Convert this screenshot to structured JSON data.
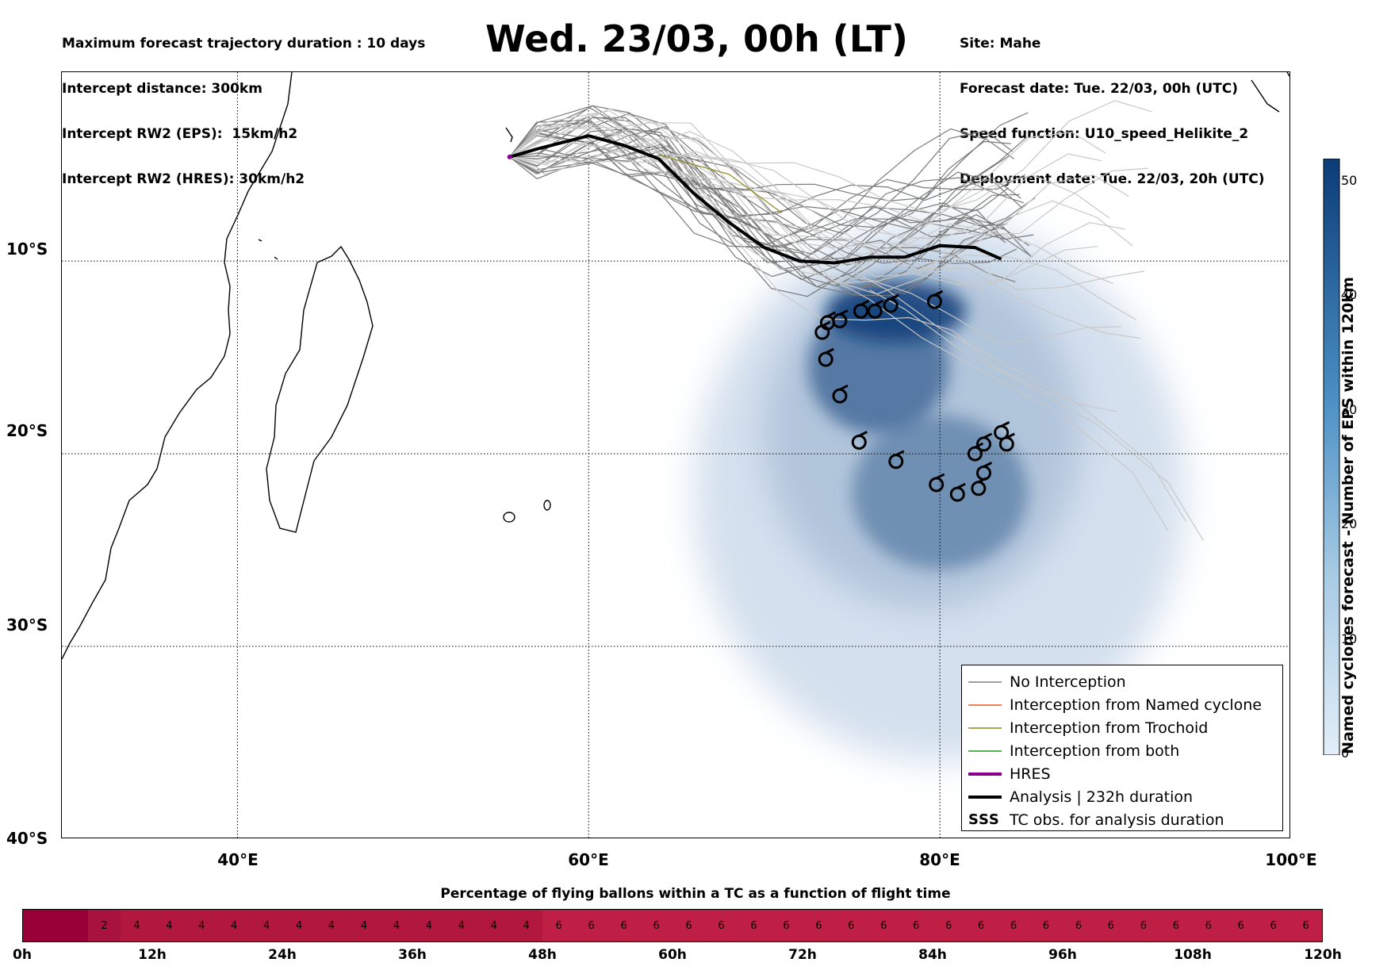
{
  "header": {
    "left_lines": [
      "Maximum forecast trajectory duration : 10 days",
      "Intercept distance: 300km",
      "Intercept RW2 (EPS):  15km/h2",
      "Intercept RW2 (HRES): 30km/h2"
    ],
    "title": "Wed. 23/03, 00h (LT)",
    "right_lines": [
      "Site: Mahe",
      "Forecast date: Tue. 22/03, 00h (UTC)",
      "Speed function: U10_speed_Helikite_2",
      "Deployment date: Tue. 22/03, 20h (UTC)"
    ]
  },
  "map": {
    "lat_labels": [
      "10°S",
      "20°S",
      "30°S",
      "40°S"
    ],
    "lon_labels": [
      "40°E",
      "60°E",
      "80°E",
      "100°E"
    ],
    "lon_range": [
      30,
      100
    ],
    "lat_range": [
      -40,
      -0.2
    ],
    "site": {
      "name": "Mahe",
      "lon": 55.5,
      "lat": -4.6
    },
    "analysis_track": [
      [
        55.5,
        -4.6
      ],
      [
        57,
        -4.2
      ],
      [
        60,
        -3.5
      ],
      [
        62,
        -4
      ],
      [
        64,
        -4.7
      ],
      [
        66,
        -6.5
      ],
      [
        68,
        -8
      ],
      [
        70,
        -9.3
      ],
      [
        72,
        -10
      ],
      [
        74,
        -10.1
      ],
      [
        76,
        -9.8
      ],
      [
        78,
        -9.8
      ],
      [
        80,
        -9.2
      ],
      [
        82,
        -9.3
      ],
      [
        83.5,
        -9.9
      ]
    ],
    "tc_obs": [
      [
        73.3,
        -13.7
      ],
      [
        73.6,
        -13.2
      ],
      [
        74.3,
        -13.1
      ],
      [
        75.5,
        -12.6
      ],
      [
        76.3,
        -12.6
      ],
      [
        77.2,
        -12.3
      ],
      [
        79.7,
        -12.1
      ],
      [
        73.5,
        -15.1
      ],
      [
        74.3,
        -17.0
      ],
      [
        75.4,
        -19.4
      ],
      [
        77.5,
        -20.4
      ],
      [
        79.8,
        -21.6
      ],
      [
        81,
        -22.1
      ],
      [
        82.2,
        -21.8
      ],
      [
        82.5,
        -21
      ],
      [
        82.5,
        -19.5
      ],
      [
        82,
        -20
      ],
      [
        83.5,
        -18.9
      ],
      [
        83.8,
        -19.5
      ]
    ],
    "density_blobs": [
      {
        "lon": 77.5,
        "lat": -12.6,
        "rx": 4,
        "ry": 1.6,
        "level": 52
      },
      {
        "lon": 76.5,
        "lat": -15.5,
        "rx": 4,
        "ry": 3.5,
        "level": 38
      },
      {
        "lon": 80,
        "lat": -22,
        "rx": 5,
        "ry": 4,
        "level": 30
      },
      {
        "lon": 79,
        "lat": -19,
        "rx": 9,
        "ry": 9,
        "level": 12
      },
      {
        "lon": 80,
        "lat": -22,
        "rx": 14,
        "ry": 14,
        "level": 4
      }
    ],
    "land_color": "#ffffff",
    "coast_color": "#000000"
  },
  "colorbar": {
    "label": "Named cyclones forecast - Number of EPS within 120km",
    "ticks": [
      "50",
      "40",
      "30",
      "20",
      "10",
      "0"
    ],
    "max": 52,
    "color_low": "#dfeaf6",
    "color_high": "#0b3c78"
  },
  "legend": {
    "items": [
      {
        "label": "No Interception",
        "color": "#808080"
      },
      {
        "label": "Interception from Named cyclone",
        "color": "#e8581e"
      },
      {
        "label": "Interception from Trochoid",
        "color": "#8b8b18"
      },
      {
        "label": "Interception from both",
        "color": "#1e9a1e"
      },
      {
        "label": "HRES",
        "color": "#8b008b"
      },
      {
        "label": "Analysis | 232h duration",
        "color": "#000000"
      },
      {
        "label": "TC obs. for analysis duration",
        "color": "#000000"
      }
    ]
  },
  "timeline": {
    "title": "Percentage of flying ballons within a TC as a function of flight time",
    "cells": [
      "",
      "",
      "2",
      "4",
      "4",
      "4",
      "4",
      "4",
      "4",
      "4",
      "4",
      "4",
      "4",
      "4",
      "4",
      "4",
      "6",
      "6",
      "6",
      "6",
      "6",
      "6",
      "6",
      "6",
      "6",
      "6",
      "6",
      "6",
      "6",
      "6",
      "6",
      "6",
      "6",
      "6",
      "6",
      "6",
      "6",
      "6",
      "6",
      "6"
    ],
    "cell_colors": [
      "#9a0038",
      "#9a0038",
      "#a8123f",
      "#b2183f",
      "#c01f45"
    ],
    "labels": [
      "0h",
      "12h",
      "24h",
      "36h",
      "48h",
      "60h",
      "72h",
      "84h",
      "96h",
      "108h",
      "120h"
    ]
  }
}
